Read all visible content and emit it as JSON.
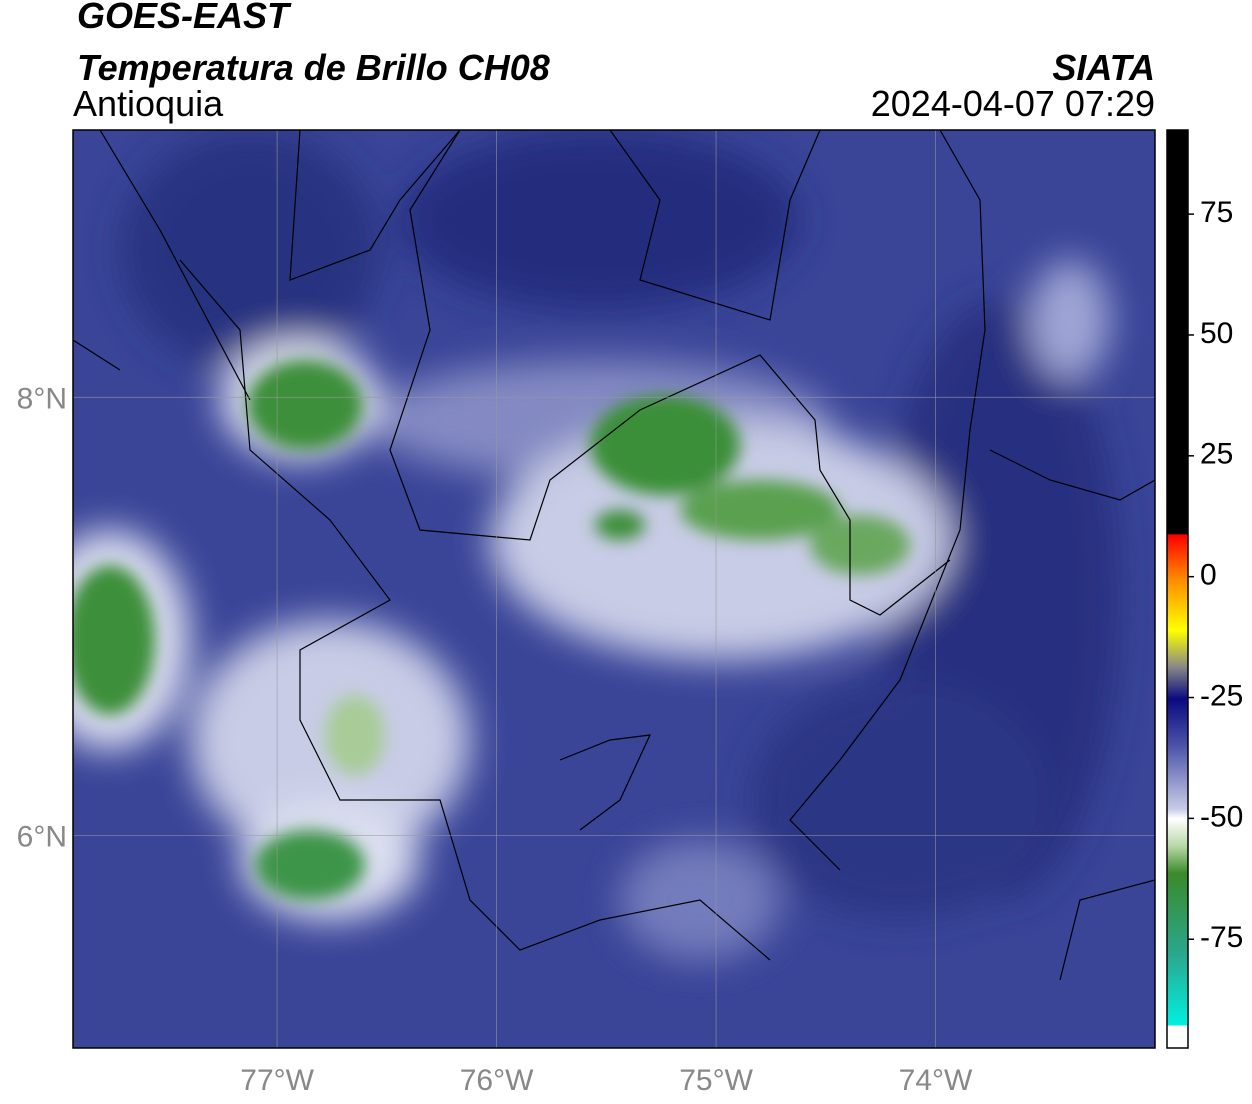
{
  "header": {
    "title": "GOES-EAST",
    "subtitle": "Temperatura de Brillo CH08",
    "region": "Antioquia",
    "source": "SIATA",
    "datetime": "2024-04-07 07:29"
  },
  "map": {
    "xlim": [
      -77.93,
      -73.0
    ],
    "ylim": [
      5.03,
      9.22
    ],
    "xticks": [
      {
        "value": -77,
        "label": "77°W"
      },
      {
        "value": -76,
        "label": "76°W"
      },
      {
        "value": -75,
        "label": "75°W"
      },
      {
        "value": -74,
        "label": "74°W"
      }
    ],
    "yticks": [
      {
        "value": 8,
        "label": "8°N"
      },
      {
        "value": 6,
        "label": "6°N"
      }
    ]
  },
  "colorbar": {
    "lim": [
      -97.5,
      92.4
    ],
    "ticks": [
      75,
      50,
      25,
      0,
      -25,
      -50,
      -75
    ]
  }
}
